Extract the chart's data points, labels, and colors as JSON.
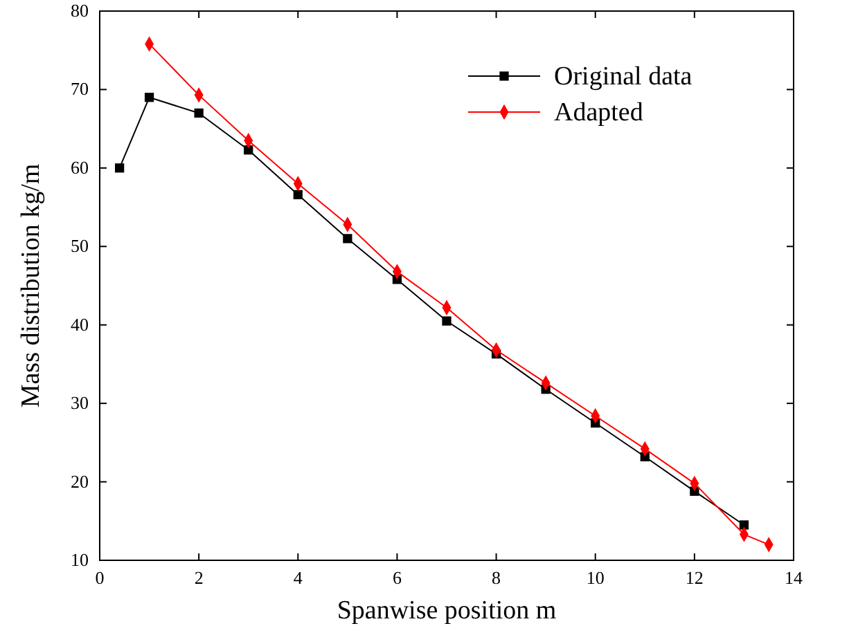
{
  "chart_data": {
    "type": "line",
    "xlabel": "Spanwise position m",
    "ylabel": "Mass distribution kg/m",
    "xlim": [
      0,
      14
    ],
    "xticks": [
      0,
      2,
      4,
      6,
      8,
      10,
      12,
      14
    ],
    "ylim": [
      10,
      80
    ],
    "yticks": [
      10,
      20,
      30,
      40,
      50,
      60,
      70,
      80
    ],
    "grid": false,
    "legend": "top right",
    "line_style": "solid",
    "series": [
      {
        "name": "Original data",
        "color": "#000000",
        "marker": "square",
        "x": [
          0.4,
          1,
          2,
          3,
          4,
          5,
          6,
          7,
          8,
          9,
          10,
          11,
          12,
          13
        ],
        "values": [
          60,
          69,
          67,
          62.3,
          56.6,
          51,
          45.8,
          40.5,
          36.3,
          31.8,
          27.5,
          23.2,
          18.8,
          14.5
        ]
      },
      {
        "name": "Adapted",
        "color": "#ff0000",
        "marker": "diamond",
        "x": [
          1,
          2,
          3,
          4,
          5,
          6,
          7,
          8,
          9,
          10,
          11,
          12,
          13,
          13.5
        ],
        "values": [
          75.8,
          69.3,
          63.5,
          58,
          52.8,
          46.8,
          42.2,
          36.8,
          32.6,
          28.4,
          24.2,
          19.8,
          13.3,
          12
        ]
      }
    ]
  }
}
